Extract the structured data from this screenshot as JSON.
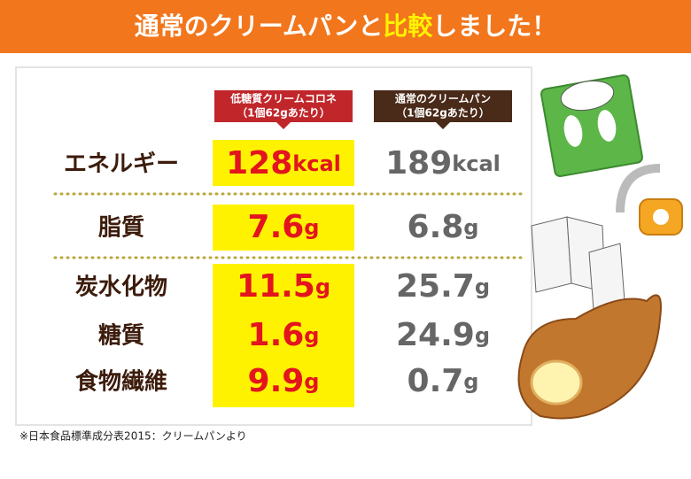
{
  "header": {
    "title_parts": [
      "通常のクリームパンと",
      "比較",
      "しました！"
    ]
  },
  "table": {
    "columns": [
      {
        "lines": [
          "低糖質クリームコロネ",
          "（1個62gあたり）"
        ]
      },
      {
        "lines": [
          "通常のクリームパン",
          "（1個62gあたり）"
        ]
      }
    ],
    "rows": [
      {
        "label": "エネルギー",
        "cells": [
          {
            "value": "128",
            "unit": "kcal"
          },
          {
            "value": "189",
            "unit": "kcal"
          }
        ]
      },
      {
        "label": "脂質",
        "cells": [
          {
            "value": "7.6",
            "unit": "g"
          },
          {
            "value": "6.8",
            "unit": "g"
          }
        ]
      },
      {
        "label": "炭水化物",
        "cells": [
          {
            "value": "11.5",
            "unit": "g"
          },
          {
            "value": "25.7",
            "unit": "g"
          }
        ]
      },
      {
        "label": "糖質",
        "cells": [
          {
            "value": "1.6",
            "unit": "g"
          },
          {
            "value": "24.9",
            "unit": "g"
          }
        ]
      },
      {
        "label": "食物繊維",
        "cells": [
          {
            "value": "9.9",
            "unit": "g"
          },
          {
            "value": "0.7",
            "unit": "g"
          }
        ]
      }
    ]
  },
  "footnote": "※日本食品標準成分表2015：クリームパンより"
}
